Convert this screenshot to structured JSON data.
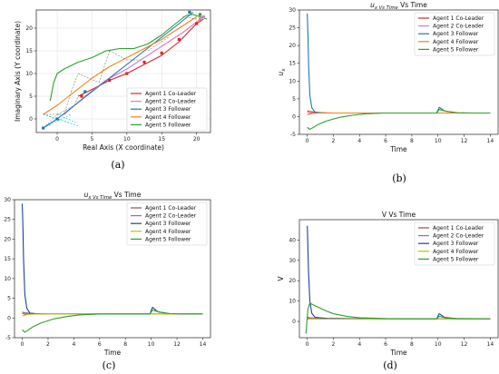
{
  "figure": {
    "panels": [
      {
        "id": "a",
        "label": "(a)",
        "title": "",
        "xlabel": "Real Axis (X coordinate)",
        "ylabel": "Imaginary Axis (Y coordinate)",
        "legend": [
          "Agent 1 Co-Leader",
          "Agent 2 Co-Leader",
          "Agent 3 Follower",
          "Agent 4 Follower",
          "Agent 5 Follower"
        ]
      },
      {
        "id": "b",
        "label": "(b)",
        "title": "u_x Vs Time",
        "xlabel": "Time",
        "ylabel": "u_x",
        "legend": [
          "Agent 1 Co-Leader",
          "Agent 2 Co-Leader",
          "Agent 3 Follower",
          "Agent 4 Follower",
          "Agent 5 Follower"
        ]
      },
      {
        "id": "c",
        "label": "(c)",
        "title": "u_x Vs Time",
        "xlabel": "Time",
        "ylabel": "u_x",
        "legend": [
          "Agent 1 Co-Leader",
          "Agent 2 Co-Leader",
          "Agent 3 Follower",
          "Agent 4 Follower",
          "Agent 5 Follower"
        ]
      },
      {
        "id": "d",
        "label": "(d)",
        "title": "V Vs Time",
        "xlabel": "Time",
        "ylabel": "V",
        "legend": [
          "Agent 1 Co-Leader",
          "Agent 2 Co-Leader",
          "Agent 3 Follower",
          "Agent 4 Follower",
          "Agent 5 Follower"
        ]
      }
    ]
  },
  "chart_data": [
    {
      "type": "line",
      "panel": "a",
      "xlabel": "Real Axis (X coordinate)",
      "ylabel": "Imaginary Axis (Y coordinate)",
      "xlim": [
        -3,
        22
      ],
      "ylim": [
        -3,
        24
      ],
      "xticks": [
        0,
        5,
        10,
        15,
        20
      ],
      "yticks": [
        0,
        5,
        10,
        15,
        20
      ],
      "grid": true,
      "legend_position": "lower-right",
      "series": [
        {
          "name": "Agent 1 Co-Leader",
          "color": "#d62728",
          "x": [
            3,
            5,
            7.5,
            10,
            12.5,
            15,
            17.5,
            20,
            21
          ],
          "y": [
            5,
            6.5,
            8.5,
            10,
            12,
            14,
            17,
            21,
            22
          ]
        },
        {
          "name": "Agent 2 Co-Leader",
          "color": "#e377c2",
          "x": [
            1,
            4,
            7,
            10,
            12.5,
            15,
            18,
            21
          ],
          "y": [
            1,
            5,
            8.5,
            11,
            13.5,
            16,
            19,
            22.5
          ]
        },
        {
          "name": "Agent 3 Follower",
          "color": "#1f77b4",
          "x": [
            -2,
            0,
            2.5,
            5,
            7.5,
            10,
            12.5,
            15,
            17.5,
            19.5
          ],
          "y": [
            -2,
            0,
            3,
            6,
            9,
            12,
            15,
            18,
            21,
            23.5
          ]
        },
        {
          "name": "Agent 4 Follower",
          "color": "#ff7f0e",
          "x": [
            -2,
            0,
            2.5,
            5,
            7.5,
            10,
            12.5,
            15,
            17.5,
            20
          ],
          "y": [
            1,
            3,
            6,
            9,
            11.5,
            13.5,
            15.5,
            17.5,
            20,
            22.5
          ]
        },
        {
          "name": "Agent 5 Follower",
          "color": "#2ca02c",
          "x": [
            -1,
            -0.5,
            0,
            1,
            3,
            5,
            7,
            9,
            11,
            13,
            15,
            17,
            18.5,
            19.5,
            20.5,
            21.5
          ],
          "y": [
            4,
            8,
            10,
            11,
            12.5,
            13.5,
            15,
            15.5,
            15.5,
            16.5,
            18.5,
            21,
            22.8,
            23,
            22.5,
            22
          ]
        }
      ],
      "markers": {
        "Agent 1 Co-Leader": {
          "x": [
            3.5,
            7.5,
            10,
            12.5,
            15,
            17.5,
            20
          ],
          "y": [
            5,
            8.5,
            10,
            12.5,
            14.5,
            17.5,
            21
          ]
        },
        "Agent 2 Co-Leader": {
          "x": [
            20.5,
            21
          ],
          "y": [
            22,
            22.5
          ]
        },
        "Agent 3 Follower": {
          "x": [
            -2,
            0,
            4,
            19
          ],
          "y": [
            -2,
            0,
            6,
            23.5
          ]
        },
        "Agent 5 Follower": {
          "x": [
            20.5
          ],
          "y": [
            23
          ]
        }
      }
    },
    {
      "type": "line",
      "panel": "b",
      "title": "u_x Vs Time",
      "xlabel": "Time",
      "ylabel": "u_x",
      "xlim": [
        -0.6,
        14.6
      ],
      "ylim": [
        -5,
        30
      ],
      "xticks": [
        0,
        2,
        4,
        6,
        8,
        10,
        12,
        14
      ],
      "yticks": [
        -5,
        0,
        5,
        10,
        15,
        20,
        25,
        30
      ],
      "grid": false,
      "legend_position": "upper-right",
      "series": [
        {
          "name": "Agent 1 Co-Leader",
          "color": "#d62728",
          "x": [
            0,
            0.2,
            1,
            2,
            4,
            6,
            8,
            10,
            14
          ],
          "y": [
            1.6,
            1.4,
            1.1,
            1.0,
            1.0,
            1.0,
            1.0,
            1.0,
            1.0
          ]
        },
        {
          "name": "Agent 2 Co-Leader",
          "color": "#e377c2",
          "x": [
            0,
            0.15,
            1,
            2,
            4,
            8,
            14
          ],
          "y": [
            1.2,
            1.0,
            1.0,
            1.0,
            1.0,
            1.0,
            1.0
          ]
        },
        {
          "name": "Agent 3 Follower",
          "color": "#1f77b4",
          "x": [
            0,
            0.02,
            0.06,
            0.1,
            0.2,
            0.35,
            0.6,
            1.5,
            4,
            8,
            9.9,
            10.1,
            10.5,
            11.5,
            14
          ],
          "y": [
            29,
            27,
            22,
            15,
            6,
            2.5,
            1.2,
            1.0,
            1.0,
            1.0,
            1.0,
            2.6,
            1.6,
            1.0,
            1.0
          ]
        },
        {
          "name": "Agent 4 Follower",
          "color": "#ff7f0e",
          "x": [
            0,
            0.1,
            0.4,
            1,
            2,
            4,
            8,
            14
          ],
          "y": [
            0.5,
            0.6,
            0.9,
            1.0,
            1.0,
            1.0,
            1.0,
            1.0
          ]
        },
        {
          "name": "Agent 5 Follower",
          "color": "#2ca02c",
          "x": [
            0,
            0.2,
            0.4,
            0.8,
            1.5,
            2.5,
            3.5,
            4.5,
            6,
            8,
            9.9,
            10.1,
            10.6,
            11.5,
            12.5,
            14
          ],
          "y": [
            -3,
            -3.6,
            -3.2,
            -2.3,
            -1.2,
            -0.2,
            0.4,
            0.8,
            1.0,
            1.0,
            1.0,
            2.0,
            1.5,
            1.1,
            1.0,
            1.0
          ]
        }
      ]
    },
    {
      "type": "line",
      "panel": "c",
      "title": "u_x Vs Time",
      "xlabel": "Time",
      "ylabel": "u_x",
      "xlim": [
        -0.6,
        14.6
      ],
      "ylim": [
        -5,
        30
      ],
      "xticks": [
        0,
        2,
        4,
        6,
        8,
        10,
        12,
        14
      ],
      "yticks": [
        -5,
        0,
        5,
        10,
        15,
        20,
        25,
        30
      ],
      "grid": false,
      "legend_position": "upper-right",
      "series": [
        {
          "name": "Agent 1 Co-Leader",
          "color": "#8c564b",
          "x": [
            0,
            0.2,
            1,
            2,
            4,
            8,
            14
          ],
          "y": [
            1.5,
            1.3,
            1.1,
            1.0,
            1.0,
            1.0,
            1.0
          ]
        },
        {
          "name": "Agent 2 Co-Leader",
          "color": "#9467bd",
          "x": [
            0,
            0.15,
            1,
            4,
            14
          ],
          "y": [
            1.2,
            1.0,
            1.0,
            1.0,
            1.0
          ]
        },
        {
          "name": "Agent 3 Follower",
          "color": "#1f3fa0",
          "x": [
            0,
            0.02,
            0.06,
            0.1,
            0.2,
            0.35,
            0.6,
            1.5,
            4,
            8,
            9.9,
            10.1,
            10.5,
            11.5,
            14
          ],
          "y": [
            29,
            27,
            22,
            15,
            6,
            2.5,
            1.2,
            1.0,
            1.0,
            1.0,
            1.0,
            2.7,
            1.6,
            1.0,
            1.0
          ]
        },
        {
          "name": "Agent 4 Follower",
          "color": "#bcbd22",
          "x": [
            0,
            0.1,
            0.4,
            1,
            2,
            4,
            8,
            14
          ],
          "y": [
            0.5,
            0.6,
            0.9,
            1.0,
            1.0,
            1.0,
            1.0,
            1.0
          ]
        },
        {
          "name": "Agent 5 Follower",
          "color": "#2ca02c",
          "x": [
            0,
            0.2,
            0.4,
            0.8,
            1.5,
            2.5,
            3.5,
            4.5,
            6,
            8,
            9.9,
            10.1,
            10.6,
            11.5,
            12.5,
            14
          ],
          "y": [
            -3,
            -3.6,
            -3.2,
            -2.3,
            -1.2,
            -0.2,
            0.4,
            0.8,
            1.0,
            1.0,
            1.0,
            2.0,
            1.5,
            1.1,
            1.0,
            1.0
          ]
        }
      ]
    },
    {
      "type": "line",
      "panel": "d",
      "title": "V Vs Time",
      "xlabel": "Time",
      "ylabel": "V",
      "xlim": [
        -0.6,
        14.6
      ],
      "ylim": [
        -8,
        50
      ],
      "xticks": [
        0,
        2,
        4,
        6,
        8,
        10,
        12,
        14
      ],
      "yticks": [
        0,
        10,
        20,
        30,
        40
      ],
      "grid": false,
      "legend_position": "upper-right",
      "series": [
        {
          "name": "Agent 1 Co-Leader",
          "color": "#8c564b",
          "x": [
            0,
            0.2,
            1,
            2,
            4,
            8,
            14
          ],
          "y": [
            2.0,
            1.8,
            1.5,
            1.3,
            1.2,
            1.2,
            1.2
          ]
        },
        {
          "name": "Agent 2 Co-Leader",
          "color": "#9467bd",
          "x": [
            0,
            0.15,
            1,
            4,
            14
          ],
          "y": [
            1.5,
            1.3,
            1.2,
            1.2,
            1.2
          ]
        },
        {
          "name": "Agent 3 Follower",
          "color": "#1f3fa0",
          "x": [
            0,
            0.02,
            0.05,
            0.1,
            0.2,
            0.35,
            0.6,
            1.5,
            4,
            8,
            9.9,
            10.1,
            10.5,
            11.5,
            14
          ],
          "y": [
            47,
            44,
            36,
            24,
            10,
            4,
            2,
            1.5,
            1.3,
            1.2,
            1.2,
            3.8,
            2.0,
            1.3,
            1.2
          ]
        },
        {
          "name": "Agent 4 Follower",
          "color": "#bcbd22",
          "x": [
            0,
            0.1,
            0.4,
            1,
            2,
            4,
            8,
            14
          ],
          "y": [
            1.0,
            1.2,
            1.4,
            1.3,
            1.2,
            1.2,
            1.2,
            1.2
          ]
        },
        {
          "name": "Agent 5 Follower",
          "color": "#2ca02c",
          "x": [
            -0.1,
            0.05,
            0.2,
            0.5,
            1,
            1.5,
            2,
            3,
            4,
            6,
            8,
            9.9,
            10.1,
            10.6,
            11.5,
            14
          ],
          "y": [
            -6,
            6,
            9,
            8,
            6.5,
            5,
            3.8,
            2.5,
            1.8,
            1.4,
            1.3,
            1.3,
            2.5,
            1.7,
            1.4,
            1.3
          ]
        }
      ]
    }
  ]
}
